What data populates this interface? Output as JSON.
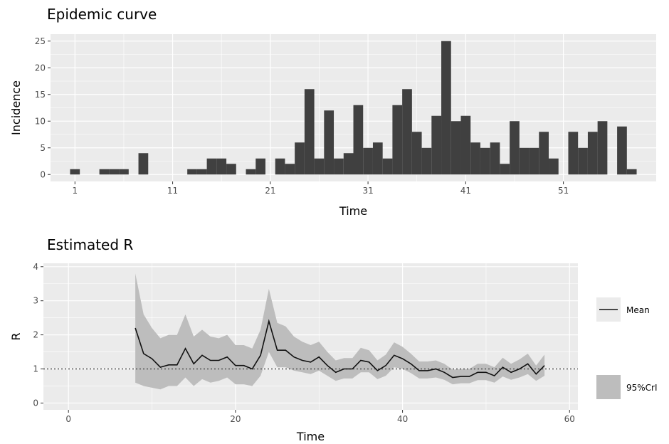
{
  "chart_data": [
    {
      "type": "bar",
      "title": "Epidemic curve",
      "xlabel": "Time",
      "ylabel": "Incidence",
      "xlim": [
        -1.5,
        60.5
      ],
      "ylim": [
        -1.3,
        26.3
      ],
      "x_ticks": [
        1,
        11,
        21,
        31,
        41,
        51
      ],
      "y_ticks": [
        0,
        5,
        10,
        15,
        20,
        25
      ],
      "grid": true,
      "x": [
        1,
        2,
        3,
        4,
        5,
        6,
        7,
        8,
        9,
        10,
        11,
        12,
        13,
        14,
        15,
        16,
        17,
        18,
        19,
        20,
        21,
        22,
        23,
        24,
        25,
        26,
        27,
        28,
        29,
        30,
        31,
        32,
        33,
        34,
        35,
        36,
        37,
        38,
        39,
        40,
        41,
        42,
        43,
        44,
        45,
        46,
        47,
        48,
        49,
        50,
        51,
        52,
        53,
        54,
        55,
        56,
        57,
        58
      ],
      "values": [
        1,
        0,
        0,
        1,
        1,
        1,
        0,
        4,
        0,
        0,
        0,
        0,
        1,
        1,
        3,
        3,
        2,
        0,
        1,
        3,
        0,
        3,
        2,
        6,
        16,
        3,
        12,
        3,
        4,
        13,
        5,
        6,
        3,
        13,
        16,
        8,
        5,
        11,
        25,
        10,
        11,
        6,
        5,
        6,
        2,
        10,
        5,
        5,
        8,
        3,
        0,
        8,
        5,
        8,
        10,
        0,
        9,
        1
      ]
    },
    {
      "type": "line",
      "title": "Estimated R",
      "xlabel": "Time",
      "ylabel": "R",
      "xlim": [
        -3,
        61
      ],
      "ylim": [
        -0.2,
        4.1
      ],
      "x_ticks": [
        0,
        20,
        40,
        60
      ],
      "y_ticks": [
        0,
        1,
        2,
        3,
        4
      ],
      "grid": true,
      "reference_line": 1,
      "legend_position": "right",
      "legend": [
        "Mean",
        "95%CrI"
      ],
      "x": [
        8,
        9,
        10,
        11,
        12,
        13,
        14,
        15,
        16,
        17,
        18,
        19,
        20,
        21,
        22,
        23,
        24,
        25,
        26,
        27,
        28,
        29,
        30,
        31,
        32,
        33,
        34,
        35,
        36,
        37,
        38,
        39,
        40,
        41,
        42,
        43,
        44,
        45,
        46,
        47,
        48,
        49,
        50,
        51,
        52,
        53,
        54,
        55,
        56,
        57
      ],
      "series": [
        {
          "name": "Mean",
          "values": [
            2.2,
            1.45,
            1.3,
            1.05,
            1.12,
            1.12,
            1.6,
            1.15,
            1.4,
            1.25,
            1.25,
            1.35,
            1.1,
            1.1,
            1.0,
            1.4,
            2.4,
            1.55,
            1.55,
            1.35,
            1.25,
            1.2,
            1.35,
            1.1,
            0.9,
            1.0,
            1.0,
            1.25,
            1.2,
            0.95,
            1.1,
            1.4,
            1.3,
            1.15,
            0.95,
            0.95,
            1.0,
            0.9,
            0.75,
            0.78,
            0.78,
            0.9,
            0.9,
            0.8,
            1.05,
            0.9,
            1.0,
            1.15,
            0.85,
            1.1
          ]
        },
        {
          "name": "95%CrI",
          "lower": [
            0.6,
            0.5,
            0.45,
            0.4,
            0.5,
            0.5,
            0.75,
            0.5,
            0.7,
            0.6,
            0.65,
            0.75,
            0.55,
            0.55,
            0.5,
            0.8,
            1.5,
            1.05,
            1.05,
            0.95,
            0.9,
            0.85,
            0.95,
            0.8,
            0.65,
            0.72,
            0.72,
            0.9,
            0.9,
            0.7,
            0.8,
            1.05,
            1.0,
            0.88,
            0.72,
            0.72,
            0.75,
            0.68,
            0.55,
            0.58,
            0.58,
            0.67,
            0.67,
            0.6,
            0.78,
            0.68,
            0.75,
            0.85,
            0.65,
            0.8
          ],
          "upper": [
            3.8,
            2.6,
            2.2,
            1.9,
            2.0,
            2.0,
            2.6,
            1.95,
            2.15,
            1.95,
            1.9,
            2.0,
            1.7,
            1.7,
            1.6,
            2.15,
            3.35,
            2.35,
            2.25,
            1.95,
            1.8,
            1.7,
            1.8,
            1.5,
            1.25,
            1.32,
            1.32,
            1.62,
            1.55,
            1.25,
            1.42,
            1.78,
            1.65,
            1.45,
            1.22,
            1.22,
            1.25,
            1.15,
            0.98,
            1.0,
            1.0,
            1.15,
            1.15,
            1.05,
            1.33,
            1.15,
            1.28,
            1.45,
            1.1,
            1.42
          ]
        }
      ]
    }
  ]
}
